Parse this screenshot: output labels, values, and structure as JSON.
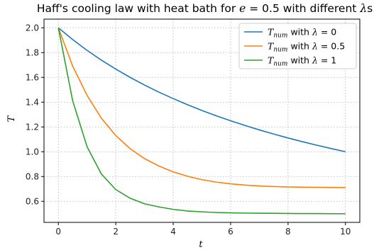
{
  "chart_data": {
    "type": "line",
    "title": "Haff's cooling law with heat bath for e = 0.5 with different λs.",
    "title_parts": {
      "lead": "Haff's cooling law with heat bath for ",
      "e_var": "e",
      "e_mid": " = 0.5 with different ",
      "lambda": "λ",
      "tail": "s."
    },
    "xlabel": "t",
    "ylabel": "T",
    "xlim": [
      -0.5,
      10.5
    ],
    "ylim": [
      0.43,
      2.07
    ],
    "xticks": [
      0,
      2,
      4,
      6,
      8,
      10
    ],
    "yticks": [
      0.6,
      0.8,
      1.0,
      1.2,
      1.4,
      1.6,
      1.8,
      2.0
    ],
    "xtick_labels": [
      "0",
      "2",
      "4",
      "6",
      "8",
      "10"
    ],
    "ytick_labels": [
      "0.6",
      "0.8",
      "1.0",
      "1.2",
      "1.4",
      "1.6",
      "1.8",
      "2.0"
    ],
    "grid": true,
    "legend_position": "top-right",
    "x": [
      0,
      0.5,
      1,
      1.5,
      2,
      2.5,
      3,
      3.5,
      4,
      4.5,
      5,
      5.5,
      6,
      6.5,
      7,
      7.5,
      8,
      8.5,
      9,
      9.5,
      10
    ],
    "series": [
      {
        "name": "T_num with λ = 0",
        "legend": {
          "T": "T",
          "sub": "num",
          "with": " with ",
          "lam": "λ",
          "eq": " = 0"
        },
        "color": "#1f77b4",
        "values": [
          2.0,
          1.905,
          1.818,
          1.739,
          1.667,
          1.6,
          1.538,
          1.481,
          1.429,
          1.379,
          1.333,
          1.29,
          1.25,
          1.212,
          1.176,
          1.143,
          1.111,
          1.081,
          1.053,
          1.026,
          1.0
        ]
      },
      {
        "name": "T_num with λ = 0.5",
        "legend": {
          "T": "T",
          "sub": "num",
          "with": " with ",
          "lam": "λ",
          "eq": " = 0.5"
        },
        "color": "#ff7f0e",
        "values": [
          2.0,
          1.69,
          1.455,
          1.27,
          1.13,
          1.025,
          0.945,
          0.885,
          0.838,
          0.802,
          0.775,
          0.755,
          0.741,
          0.731,
          0.724,
          0.719,
          0.716,
          0.714,
          0.713,
          0.712,
          0.711
        ]
      },
      {
        "name": "T_num with λ = 1",
        "legend": {
          "T": "T",
          "sub": "num",
          "with": " with ",
          "lam": "λ",
          "eq": " = 1"
        },
        "color": "#2ca02c",
        "values": [
          2.0,
          1.41,
          1.04,
          0.82,
          0.695,
          0.625,
          0.58,
          0.555,
          0.535,
          0.522,
          0.515,
          0.51,
          0.507,
          0.505,
          0.504,
          0.503,
          0.502,
          0.501,
          0.501,
          0.5,
          0.5
        ]
      }
    ]
  }
}
